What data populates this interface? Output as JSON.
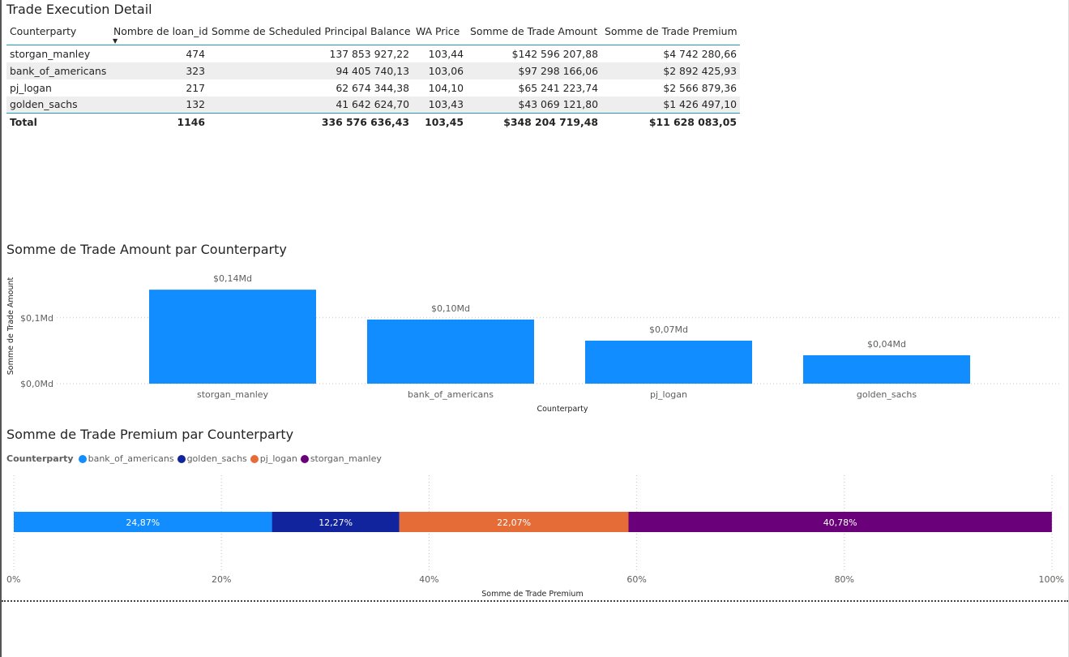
{
  "table": {
    "title": "Trade Execution Detail",
    "columns": [
      "Counterparty",
      "Nombre de loan_id",
      "Somme de Scheduled Principal Balance",
      "WA Price",
      "Somme de Trade Amount",
      "Somme de Trade Premium"
    ],
    "sort_indicator": "▼",
    "rows": [
      [
        "storgan_manley",
        "474",
        "137 853 927,22",
        "103,44",
        "$142 596 207,88",
        "$4 742 280,66"
      ],
      [
        "bank_of_americans",
        "323",
        "94 405 740,13",
        "103,06",
        "$97 298 166,06",
        "$2 892 425,93"
      ],
      [
        "pj_logan",
        "217",
        "62 674 344,38",
        "104,10",
        "$65 241 223,74",
        "$2 566 879,36"
      ],
      [
        "golden_sachs",
        "132",
        "41 642 624,70",
        "103,43",
        "$43 069 121,80",
        "$1 426 497,10"
      ]
    ],
    "total": [
      "Total",
      "1146",
      "336 576 636,43",
      "103,45",
      "$348 204 719,48",
      "$11 628 083,05"
    ]
  },
  "chart_data": [
    {
      "type": "bar",
      "title": "Somme de Trade Amount par Counterparty",
      "xlabel": "Counterparty",
      "ylabel": "Somme de Trade Amount",
      "categories": [
        "storgan_manley",
        "bank_of_americans",
        "pj_logan",
        "golden_sachs"
      ],
      "values": [
        142596207.88,
        97298166.06,
        65241223.74,
        43069121.8
      ],
      "data_labels": [
        "$0,14Md",
        "$0,10Md",
        "$0,07Md",
        "$0,04Md"
      ],
      "yticks": [
        0,
        100000000
      ],
      "ytick_labels": [
        "$0,0Md",
        "$0,1Md"
      ],
      "ylim": [
        0,
        160000000
      ],
      "color": "#118dff",
      "grid": true
    },
    {
      "type": "bar",
      "orientation": "horizontal-stacked-100",
      "title": "Somme de Trade Premium par Counterparty",
      "legend_title": "Counterparty",
      "xlabel": "Somme de Trade Premium",
      "series": [
        {
          "name": "bank_of_americans",
          "value": 24.87,
          "label": "24,87%",
          "color": "#118dff"
        },
        {
          "name": "golden_sachs",
          "value": 12.27,
          "label": "12,27%",
          "color": "#12239e"
        },
        {
          "name": "pj_logan",
          "value": 22.07,
          "label": "22,07%",
          "color": "#e66c37"
        },
        {
          "name": "storgan_manley",
          "value": 40.78,
          "label": "40,78%",
          "color": "#6b007b"
        }
      ],
      "xticks": [
        0,
        20,
        40,
        60,
        80,
        100
      ],
      "xtick_labels": [
        "0%",
        "20%",
        "40%",
        "60%",
        "80%",
        "100%"
      ],
      "xlim": [
        0,
        100
      ],
      "grid": true
    }
  ]
}
